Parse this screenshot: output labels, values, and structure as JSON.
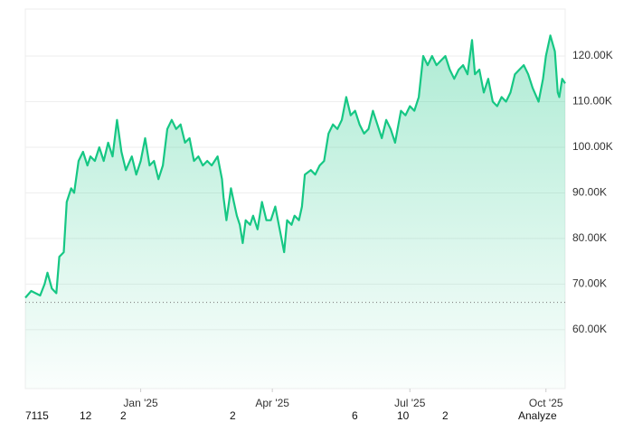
{
  "chart_data": {
    "type": "area",
    "x": [
      0,
      4,
      7,
      10,
      13,
      15,
      18,
      21,
      23,
      26,
      28,
      31,
      33,
      36,
      39,
      42,
      44,
      47,
      50,
      53,
      56,
      59,
      62,
      65,
      68,
      72,
      75,
      78,
      81,
      84,
      87,
      90,
      93,
      96,
      99,
      102,
      105,
      108,
      111,
      114,
      117,
      120,
      123,
      126,
      130,
      133,
      134,
      136,
      139,
      141,
      143,
      145,
      147,
      149,
      152,
      154,
      157,
      160,
      163,
      166,
      169,
      172,
      175,
      177,
      180,
      182,
      185,
      187,
      189,
      193,
      196,
      199,
      202,
      205,
      208,
      211,
      214,
      217,
      220,
      223,
      226,
      229,
      232,
      235,
      238,
      241,
      244,
      247,
      250,
      254,
      257,
      260,
      263,
      266,
      269,
      272,
      275,
      278,
      281,
      284,
      287,
      290,
      293,
      296,
      299,
      302,
      304,
      307,
      310,
      313,
      316,
      319,
      322,
      325,
      328,
      331,
      334,
      337,
      340,
      343,
      347,
      350,
      352,
      355,
      358,
      360,
      361,
      363,
      365
    ],
    "values": [
      67000,
      68500,
      68000,
      67500,
      70000,
      72500,
      69000,
      68000,
      76000,
      77000,
      88000,
      91000,
      90000,
      97000,
      99000,
      96000,
      98000,
      97000,
      100000,
      97000,
      101000,
      98000,
      106000,
      99000,
      95000,
      98000,
      94000,
      97000,
      102000,
      96000,
      97000,
      93000,
      96000,
      104000,
      106000,
      104000,
      105000,
      101000,
      102000,
      97000,
      98000,
      96000,
      97000,
      96000,
      98000,
      93000,
      89000,
      84000,
      91000,
      88000,
      85000,
      83000,
      79000,
      84000,
      83000,
      85000,
      82000,
      88000,
      84000,
      84000,
      87000,
      82000,
      77000,
      84000,
      83000,
      85000,
      84000,
      87000,
      94000,
      95000,
      94000,
      96000,
      97000,
      103000,
      105000,
      104000,
      106000,
      111000,
      107000,
      108000,
      105000,
      103000,
      104000,
      108000,
      105000,
      102000,
      106000,
      104000,
      101000,
      108000,
      107000,
      109000,
      108000,
      111000,
      120000,
      118000,
      120000,
      118000,
      119000,
      120000,
      117000,
      115000,
      117000,
      118000,
      116000,
      123500,
      116000,
      117000,
      112000,
      115000,
      110000,
      109000,
      111000,
      110000,
      112000,
      116000,
      117000,
      118000,
      116000,
      113000,
      110000,
      115000,
      120000,
      124500,
      121000,
      112000,
      111000,
      115000,
      114000
    ],
    "color": "#16c784",
    "baseline": 66000,
    "xlim": [
      0,
      365
    ],
    "xticks": [
      {
        "value": 78,
        "label": "Jan '25"
      },
      {
        "value": 167,
        "label": "Apr '25"
      },
      {
        "value": 260,
        "label": "Jul '25"
      },
      {
        "value": 352,
        "label": "Oct '25"
      }
    ],
    "ylim": [
      47100,
      130300
    ],
    "yticks": [
      {
        "value": 60000,
        "label": "60.00K"
      },
      {
        "value": 70000,
        "label": "70.00K"
      },
      {
        "value": 80000,
        "label": "80.00K"
      },
      {
        "value": 90000,
        "label": "90.00K"
      },
      {
        "value": 100000,
        "label": "100.00K"
      },
      {
        "value": 110000,
        "label": "110.00K"
      },
      {
        "value": 120000,
        "label": "120.00K"
      }
    ],
    "grid": true,
    "toolbar": [
      "7115",
      "12",
      "2",
      "2",
      "6",
      "10",
      "2",
      "Analyze"
    ]
  }
}
